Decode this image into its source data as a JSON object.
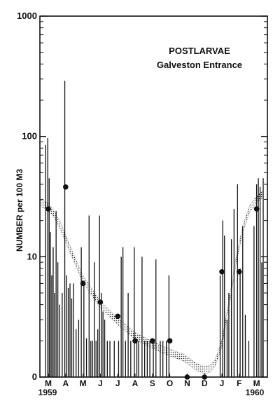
{
  "chart_data": {
    "type": "scatter",
    "title": "POSTLARVAE",
    "subtitle": "Galveston Entrance",
    "ylabel": "NUMBER per 100 M3",
    "yscale": "log",
    "ylim": [
      1,
      1000
    ],
    "y_ticks": [
      {
        "value": 1,
        "label": "0"
      },
      {
        "value": 10,
        "label": "10"
      },
      {
        "value": 100,
        "label": "100"
      },
      {
        "value": 1000,
        "label": "1000"
      }
    ],
    "months": [
      "M",
      "A",
      "M",
      "J",
      "J",
      "A",
      "S",
      "O",
      "N",
      "D",
      "J",
      "F",
      "M"
    ],
    "year_start_label": "1959",
    "year_end_label": "1960",
    "monthly_means": [
      {
        "month": 0,
        "value": 25
      },
      {
        "month": 1,
        "value": 38
      },
      {
        "month": 2,
        "value": 6
      },
      {
        "month": 3,
        "value": 4.2
      },
      {
        "month": 4,
        "value": 3.2
      },
      {
        "month": 5,
        "value": 2
      },
      {
        "month": 6,
        "value": 2
      },
      {
        "month": 7,
        "value": 2
      },
      {
        "month": 8,
        "value": 1
      },
      {
        "month": 9,
        "value": 1
      },
      {
        "month": 10,
        "value": 7.5
      },
      {
        "month": 11,
        "value": 7.5
      },
      {
        "month": 12,
        "value": 25
      }
    ],
    "trend_curve": [
      {
        "x": -0.45,
        "y": 28
      },
      {
        "x": 0.0,
        "y": 26
      },
      {
        "x": 0.3,
        "y": 23
      },
      {
        "x": 0.7,
        "y": 18
      },
      {
        "x": 1.2,
        "y": 12
      },
      {
        "x": 2.0,
        "y": 6.5
      },
      {
        "x": 3.0,
        "y": 4.0
      },
      {
        "x": 4.0,
        "y": 2.9
      },
      {
        "x": 5.0,
        "y": 2.2
      },
      {
        "x": 6.0,
        "y": 1.85
      },
      {
        "x": 7.0,
        "y": 1.6
      },
      {
        "x": 7.8,
        "y": 1.45
      },
      {
        "x": 8.5,
        "y": 1.22
      },
      {
        "x": 9.0,
        "y": 1.14
      },
      {
        "x": 9.3,
        "y": 1.17
      },
      {
        "x": 9.6,
        "y": 1.3
      },
      {
        "x": 10.0,
        "y": 1.9
      },
      {
        "x": 10.4,
        "y": 4.0
      },
      {
        "x": 10.8,
        "y": 9.0
      },
      {
        "x": 11.2,
        "y": 17
      },
      {
        "x": 11.6,
        "y": 25
      },
      {
        "x": 12.0,
        "y": 30
      },
      {
        "x": 12.35,
        "y": 33
      }
    ],
    "sample_values": [
      {
        "x": -0.15,
        "y": 85
      },
      {
        "x": -0.03,
        "y": 97
      },
      {
        "x": 0.05,
        "y": 45
      },
      {
        "x": 0.12,
        "y": 16
      },
      {
        "x": 0.2,
        "y": 7
      },
      {
        "x": 0.28,
        "y": 12
      },
      {
        "x": 0.36,
        "y": 5
      },
      {
        "x": 0.45,
        "y": 24
      },
      {
        "x": 0.55,
        "y": 9
      },
      {
        "x": 0.65,
        "y": 4
      },
      {
        "x": 0.8,
        "y": 5
      },
      {
        "x": 0.95,
        "y": 290
      },
      {
        "x": 1.05,
        "y": 7
      },
      {
        "x": 1.15,
        "y": 5.5
      },
      {
        "x": 1.25,
        "y": 6
      },
      {
        "x": 1.35,
        "y": 4.5
      },
      {
        "x": 1.45,
        "y": 6
      },
      {
        "x": 1.6,
        "y": 2.5
      },
      {
        "x": 1.75,
        "y": 3
      },
      {
        "x": 1.9,
        "y": 12
      },
      {
        "x": 2.05,
        "y": 6
      },
      {
        "x": 2.2,
        "y": 2.1
      },
      {
        "x": 2.35,
        "y": 22
      },
      {
        "x": 2.45,
        "y": 2
      },
      {
        "x": 2.55,
        "y": 2
      },
      {
        "x": 2.65,
        "y": 9
      },
      {
        "x": 2.75,
        "y": 2
      },
      {
        "x": 2.85,
        "y": 2.5
      },
      {
        "x": 2.95,
        "y": 22
      },
      {
        "x": 3.05,
        "y": 5
      },
      {
        "x": 3.15,
        "y": 3.5
      },
      {
        "x": 3.25,
        "y": 3
      },
      {
        "x": 3.4,
        "y": 2
      },
      {
        "x": 3.55,
        "y": 2
      },
      {
        "x": 3.8,
        "y": 2
      },
      {
        "x": 4.05,
        "y": 2
      },
      {
        "x": 4.2,
        "y": 10
      },
      {
        "x": 4.3,
        "y": 12
      },
      {
        "x": 4.45,
        "y": 2
      },
      {
        "x": 4.6,
        "y": 5
      },
      {
        "x": 4.75,
        "y": 2
      },
      {
        "x": 4.95,
        "y": 12
      },
      {
        "x": 5.1,
        "y": 2
      },
      {
        "x": 5.2,
        "y": 2
      },
      {
        "x": 5.4,
        "y": 10
      },
      {
        "x": 5.55,
        "y": 2
      },
      {
        "x": 5.7,
        "y": 2
      },
      {
        "x": 5.85,
        "y": 2
      },
      {
        "x": 6.05,
        "y": 2
      },
      {
        "x": 6.2,
        "y": 9.5
      },
      {
        "x": 6.45,
        "y": 2
      },
      {
        "x": 6.6,
        "y": 2
      },
      {
        "x": 6.8,
        "y": 2
      },
      {
        "x": 6.95,
        "y": 7
      },
      {
        "x": 9.9,
        "y": 7
      },
      {
        "x": 10.05,
        "y": 20
      },
      {
        "x": 10.15,
        "y": 15
      },
      {
        "x": 10.3,
        "y": 3
      },
      {
        "x": 10.4,
        "y": 5
      },
      {
        "x": 10.55,
        "y": 14
      },
      {
        "x": 10.7,
        "y": 25
      },
      {
        "x": 10.9,
        "y": 40
      },
      {
        "x": 11.05,
        "y": 8
      },
      {
        "x": 11.2,
        "y": 18
      },
      {
        "x": 11.35,
        "y": 3.3
      },
      {
        "x": 11.55,
        "y": 2
      },
      {
        "x": 11.85,
        "y": 18
      },
      {
        "x": 12.0,
        "y": 40
      },
      {
        "x": 12.1,
        "y": 45
      },
      {
        "x": 12.2,
        "y": 38
      },
      {
        "x": 12.3,
        "y": 9
      },
      {
        "x": 12.38,
        "y": 45
      }
    ]
  }
}
